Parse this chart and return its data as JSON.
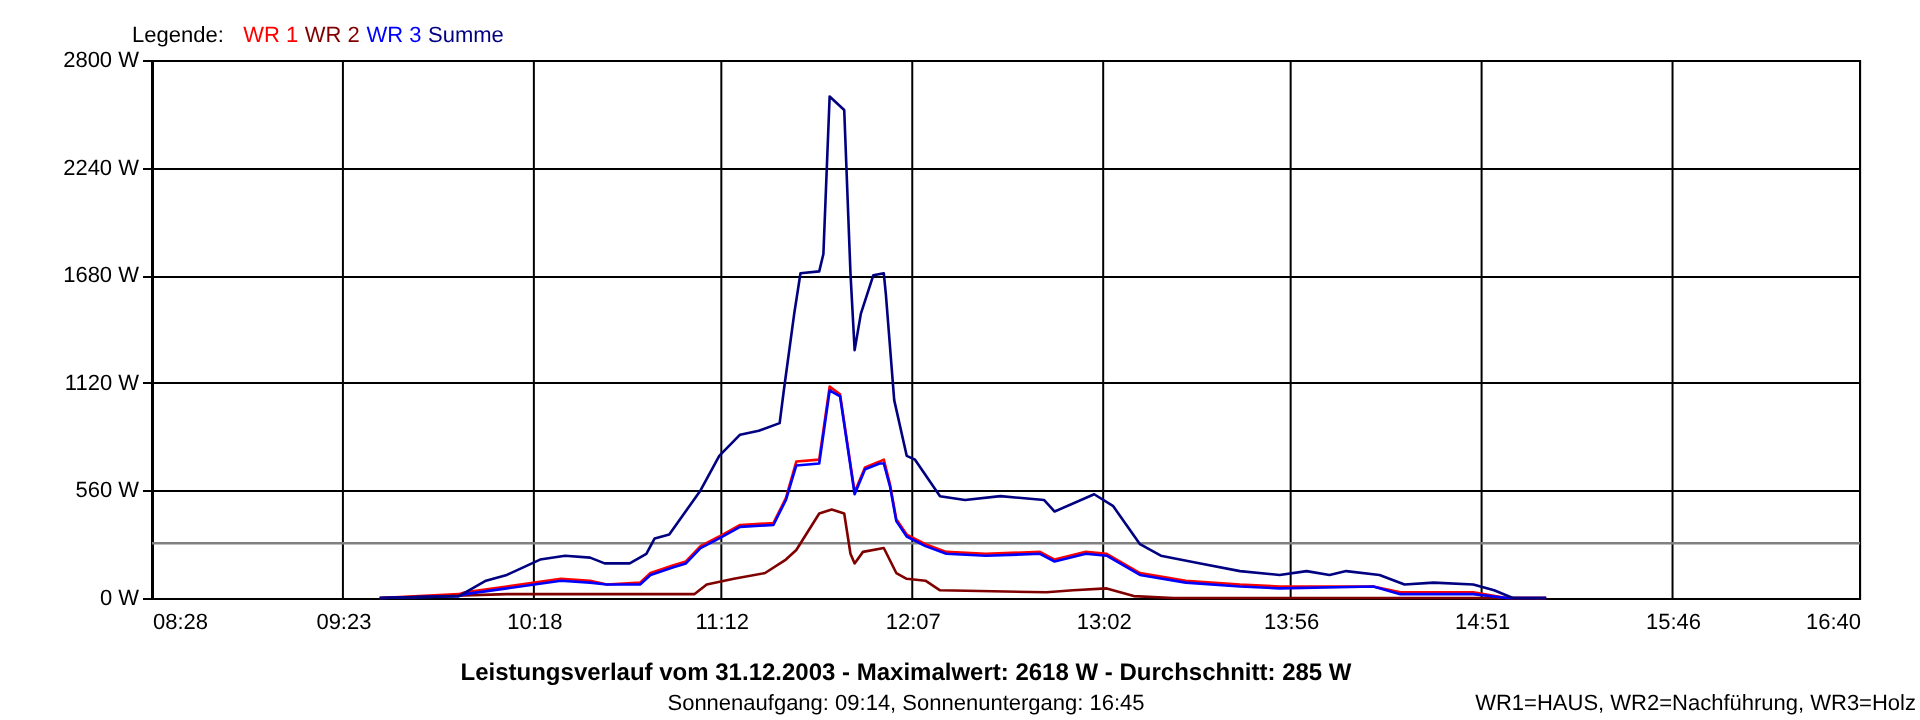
{
  "chart_data": {
    "type": "line",
    "title": "Leistungsverlauf vom 31.12.2003 - Maximalwert: 2618 W - Durchschnitt: 285 W",
    "subtitle": "Sonnenaufgang: 09:14, Sonnenuntergang: 16:45",
    "legend_title": "Legende:",
    "annotations": [
      "WR1=HAUS, WR2=Nachführung, WR3=Holz"
    ],
    "legend": "top left",
    "grid": true,
    "marker": "none",
    "line_style": "solid",
    "xlim": [
      8.4667,
      16.6667
    ],
    "xticks": [
      {
        "value": 8.4667,
        "label": "08:28"
      },
      {
        "value": 9.3833,
        "label": "09:23"
      },
      {
        "value": 10.3,
        "label": "10:18"
      },
      {
        "value": 11.2,
        "label": "11:12"
      },
      {
        "value": 12.1167,
        "label": "12:07"
      },
      {
        "value": 13.0333,
        "label": "13:02"
      },
      {
        "value": 13.9333,
        "label": "13:56"
      },
      {
        "value": 14.85,
        "label": "14:51"
      },
      {
        "value": 15.7667,
        "label": "15:46"
      },
      {
        "value": 16.6667,
        "label": "16:40"
      }
    ],
    "ylim": [
      0,
      2800
    ],
    "yticks": [
      {
        "value": 0,
        "label": "0 W"
      },
      {
        "value": 560,
        "label": "560 W"
      },
      {
        "value": 1120,
        "label": "1120 W"
      },
      {
        "value": 1680,
        "label": "1680 W"
      },
      {
        "value": 2240,
        "label": "2240 W"
      },
      {
        "value": 2800,
        "label": "2800 W"
      }
    ],
    "ref_lines": [
      {
        "axis": "y",
        "value": 285,
        "color": "#808080"
      }
    ],
    "series": [
      {
        "name": "WR 1",
        "color": "#ff0000",
        "x": [
          9.56,
          9.94,
          9.97,
          10.17,
          10.43,
          10.57,
          10.65,
          10.81,
          10.86,
          10.97,
          11.03,
          11.1,
          11.19,
          11.29,
          11.45,
          11.51,
          11.56,
          11.67,
          11.72,
          11.77,
          11.84,
          11.89,
          11.96,
          11.98,
          12.01,
          12.04,
          12.09,
          12.18,
          12.28,
          12.47,
          12.73,
          12.8,
          12.95,
          13.05,
          13.21,
          13.43,
          13.69,
          13.88,
          14.33,
          14.46,
          14.81,
          14.97,
          15.16
        ],
        "values": [
          0,
          20,
          30,
          60,
          100,
          90,
          70,
          80,
          130,
          170,
          190,
          270,
          320,
          380,
          390,
          520,
          710,
          720,
          1100,
          1060,
          550,
          680,
          710,
          720,
          590,
          410,
          330,
          280,
          240,
          230,
          240,
          200,
          240,
          230,
          130,
          90,
          70,
          60,
          60,
          30,
          30,
          0,
          0
        ]
      },
      {
        "name": "WR 2",
        "color": "#800000",
        "x": [
          9.56,
          10.17,
          10.26,
          10.97,
          11.07,
          11.13,
          11.26,
          11.41,
          11.51,
          11.56,
          11.67,
          11.73,
          11.79,
          11.82,
          11.84,
          11.88,
          11.98,
          12.04,
          12.09,
          12.18,
          12.25,
          12.76,
          12.89,
          13.05,
          13.18,
          13.37,
          15.16
        ],
        "values": [
          0,
          20,
          20,
          20,
          20,
          70,
          100,
          130,
          200,
          250,
          440,
          460,
          440,
          230,
          180,
          240,
          260,
          130,
          100,
          90,
          40,
          30,
          40,
          50,
          10,
          0,
          0
        ]
      },
      {
        "name": "WR 3",
        "color": "#0000ff",
        "x": [
          9.56,
          9.94,
          9.97,
          10.17,
          10.43,
          10.57,
          10.65,
          10.81,
          10.86,
          10.97,
          11.03,
          11.1,
          11.19,
          11.29,
          11.45,
          11.51,
          11.56,
          11.67,
          11.72,
          11.77,
          11.84,
          11.89,
          11.96,
          11.98,
          12.01,
          12.04,
          12.09,
          12.18,
          12.28,
          12.47,
          12.73,
          12.8,
          12.95,
          13.05,
          13.21,
          13.43,
          13.69,
          13.88,
          14.33,
          14.46,
          14.81,
          14.97,
          15.16
        ],
        "values": [
          0,
          10,
          20,
          50,
          90,
          80,
          70,
          70,
          120,
          160,
          180,
          260,
          310,
          370,
          380,
          510,
          690,
          700,
          1080,
          1050,
          540,
          670,
          700,
          700,
          580,
          400,
          320,
          270,
          230,
          220,
          230,
          190,
          230,
          220,
          120,
          80,
          60,
          50,
          60,
          20,
          20,
          0,
          0
        ]
      },
      {
        "name": "Summe",
        "color": "#000080",
        "x": [
          9.56,
          9.94,
          10.07,
          10.17,
          10.33,
          10.45,
          10.57,
          10.64,
          10.76,
          10.84,
          10.88,
          10.95,
          11.1,
          11.19,
          11.29,
          11.38,
          11.48,
          11.5,
          11.55,
          11.58,
          11.67,
          11.69,
          11.72,
          11.79,
          11.82,
          11.84,
          11.87,
          11.93,
          11.98,
          11.99,
          12.03,
          12.09,
          12.13,
          12.25,
          12.37,
          12.54,
          12.75,
          12.8,
          12.99,
          13.08,
          13.21,
          13.31,
          13.5,
          13.69,
          13.88,
          14.01,
          14.12,
          14.2,
          14.36,
          14.48,
          14.62,
          14.81,
          14.91,
          15.0,
          15.16
        ],
        "values": [
          0,
          10,
          90,
          120,
          200,
          220,
          210,
          180,
          180,
          230,
          310,
          330,
          560,
          740,
          850,
          870,
          910,
          1080,
          1480,
          1690,
          1700,
          1790,
          2610,
          2540,
          1690,
          1290,
          1480,
          1680,
          1690,
          1580,
          1030,
          740,
          720,
          530,
          510,
          530,
          510,
          450,
          540,
          480,
          280,
          220,
          180,
          140,
          120,
          140,
          120,
          140,
          120,
          70,
          80,
          70,
          40,
          0,
          0
        ]
      }
    ]
  }
}
